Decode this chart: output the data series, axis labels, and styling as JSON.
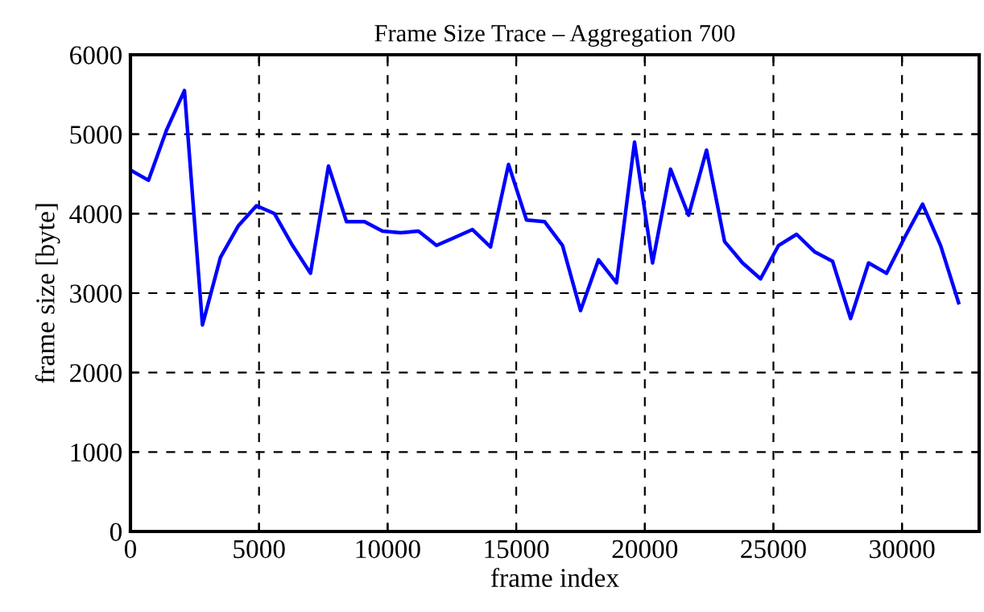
{
  "chart_data": {
    "type": "line",
    "title": "Frame Size Trace – Aggregation 700",
    "xlabel": "frame index",
    "ylabel": "frame size [byte]",
    "x": [
      0,
      700,
      1400,
      2100,
      2800,
      3500,
      4200,
      4900,
      5600,
      6300,
      7000,
      7700,
      8400,
      9100,
      9800,
      10500,
      11200,
      11900,
      12600,
      13300,
      14000,
      14700,
      15400,
      16100,
      16800,
      17500,
      18200,
      18900,
      19600,
      20300,
      21000,
      21700,
      22400,
      23100,
      23800,
      24500,
      25200,
      25900,
      26600,
      27300,
      28000,
      28700,
      29400,
      30100,
      30800,
      31500,
      32200
    ],
    "series": [
      {
        "color": "#0000ff",
        "values": [
          4550,
          4420,
          5050,
          5550,
          2600,
          3450,
          3850,
          4100,
          4000,
          3600,
          3250,
          4600,
          3900,
          3900,
          3780,
          3760,
          3780,
          3600,
          3700,
          3800,
          3580,
          4620,
          3920,
          3900,
          3600,
          2780,
          3420,
          3130,
          4900,
          3380,
          4560,
          3980,
          4800,
          3650,
          3380,
          3180,
          3600,
          3740,
          3520,
          3400,
          2680,
          3380,
          3250,
          3700,
          4120,
          3600,
          2880
        ]
      }
    ],
    "xlim": [
      0,
      33000
    ],
    "xticks": [
      0,
      5000,
      10000,
      15000,
      20000,
      25000,
      30000
    ],
    "ylim": [
      0,
      6000
    ],
    "yticks": [
      0,
      1000,
      2000,
      3000,
      4000,
      5000,
      6000
    ],
    "grid": true,
    "line_style": "solid",
    "marker": "none"
  }
}
